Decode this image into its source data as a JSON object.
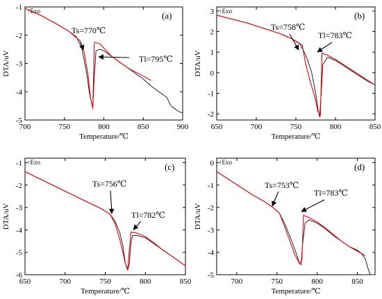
{
  "figure": {
    "panels": [
      {
        "id": "a",
        "label": "(a)",
        "exo": "↑Exo",
        "xlabel": "Temperature/℃",
        "ylabel": "DTA/uV"
      },
      {
        "id": "b",
        "label": "(b)",
        "exo": "↑Exo",
        "xlabel": "Temperature/℃",
        "ylabel": "DTA/uV"
      },
      {
        "id": "c",
        "label": "(c)",
        "exo": "↑Exo",
        "xlabel": "Temperature/℃",
        "ylabel": "DTA/uV"
      },
      {
        "id": "d",
        "label": "(d)",
        "exo": "↑Exo",
        "xlabel": "Temperature/℃",
        "ylabel": "DTA/uV"
      }
    ]
  },
  "chart_data": [
    {
      "type": "line",
      "panel": "(a)",
      "xlabel": "Temperature/℃",
      "ylabel": "DTA/uV",
      "xlim": [
        700,
        900
      ],
      "ylim": [
        -5,
        -1
      ],
      "xticks": [
        700,
        750,
        800,
        850,
        900
      ],
      "yticks": [
        -5,
        -4,
        -3,
        -2,
        -1
      ],
      "series": [
        {
          "color": "#222222",
          "x": [
            700,
            720,
            740,
            755,
            765,
            772,
            778,
            782,
            786,
            788,
            790,
            795,
            800,
            810,
            820,
            830,
            840,
            850,
            860,
            870,
            880,
            885,
            890,
            895,
            900
          ],
          "y": [
            -1.05,
            -1.3,
            -1.6,
            -1.85,
            -2.05,
            -2.45,
            -3.3,
            -4.1,
            -4.55,
            -3.4,
            -2.55,
            -2.5,
            -2.55,
            -2.75,
            -2.95,
            -3.15,
            -3.35,
            -3.55,
            -3.8,
            -4.0,
            -4.2,
            -4.5,
            -4.6,
            -4.7,
            -4.75
          ]
        },
        {
          "color": "#e8000b",
          "x": [
            700,
            720,
            740,
            755,
            770,
            775,
            780,
            783,
            786,
            788,
            795,
            800,
            810,
            820,
            830,
            840,
            850,
            860
          ],
          "y": [
            -1.05,
            -1.3,
            -1.6,
            -1.85,
            -2.2,
            -2.6,
            -3.4,
            -4.2,
            -4.6,
            -2.25,
            -2.3,
            -2.45,
            -2.75,
            -2.95,
            -3.15,
            -3.3,
            -3.45,
            -3.6
          ]
        }
      ],
      "annotations": [
        {
          "text": "Ts=770℃",
          "x": 770,
          "y": -2.2
        },
        {
          "text": "Tl=795℃",
          "x": 795,
          "y": -2.25
        }
      ]
    },
    {
      "type": "line",
      "panel": "(b)",
      "xlabel": "Temperature/℃",
      "ylabel": "DTA/uV",
      "xlim": [
        650,
        850
      ],
      "ylim": [
        -2.3,
        3.2
      ],
      "xticks": [
        650,
        700,
        750,
        800,
        850
      ],
      "yticks": [
        -2,
        -1,
        0,
        1,
        2,
        3
      ],
      "series": [
        {
          "color": "#222222",
          "x": [
            650,
            670,
            690,
            710,
            730,
            745,
            755,
            760,
            765,
            770,
            775,
            778,
            780,
            782,
            784,
            790,
            800,
            810,
            820,
            830,
            840,
            850
          ],
          "y": [
            2.8,
            2.6,
            2.4,
            2.15,
            1.9,
            1.65,
            1.4,
            1.05,
            0.6,
            0.0,
            -1.0,
            -1.8,
            -2.15,
            -1.0,
            0.4,
            0.75,
            0.6,
            0.35,
            0.1,
            -0.15,
            -0.4,
            -0.6
          ]
        },
        {
          "color": "#e8000b",
          "x": [
            650,
            670,
            690,
            710,
            730,
            745,
            758,
            762,
            768,
            774,
            778,
            781,
            783,
            790,
            800,
            810,
            820,
            830,
            840,
            850
          ],
          "y": [
            2.8,
            2.6,
            2.4,
            2.15,
            1.9,
            1.65,
            1.35,
            0.5,
            -0.4,
            -1.2,
            -1.9,
            -2.1,
            0.95,
            0.85,
            0.65,
            0.4,
            0.15,
            -0.1,
            -0.35,
            -0.6
          ]
        }
      ],
      "annotations": [
        {
          "text": "Ts=758℃",
          "x": 758,
          "y": 1.35
        },
        {
          "text": "Tl=783℃",
          "x": 783,
          "y": 0.95
        }
      ]
    },
    {
      "type": "line",
      "panel": "(c)",
      "xlabel": "Temperature/℃",
      "ylabel": "DTA/uV",
      "xlim": [
        650,
        850
      ],
      "ylim": [
        -6,
        -0.8
      ],
      "xticks": [
        650,
        700,
        750,
        800,
        850
      ],
      "yticks": [
        -6,
        -5,
        -4,
        -3,
        -2,
        -1
      ],
      "series": [
        {
          "color": "#222222",
          "x": [
            650,
            670,
            690,
            710,
            730,
            745,
            756,
            762,
            768,
            772,
            775,
            778,
            780,
            782,
            784,
            790,
            800,
            810,
            820,
            830,
            840,
            850
          ],
          "y": [
            -1.4,
            -1.75,
            -2.1,
            -2.45,
            -2.8,
            -3.05,
            -3.3,
            -3.6,
            -4.1,
            -4.7,
            -5.5,
            -5.8,
            -5.5,
            -4.6,
            -4.25,
            -4.25,
            -4.35,
            -4.6,
            -4.85,
            -5.1,
            -5.35,
            -5.6
          ]
        },
        {
          "color": "#e8000b",
          "x": [
            650,
            670,
            690,
            710,
            730,
            745,
            756,
            762,
            768,
            772,
            775,
            778,
            782,
            790,
            800,
            810,
            820,
            830,
            840,
            850
          ],
          "y": [
            -1.4,
            -1.75,
            -2.1,
            -2.45,
            -2.8,
            -3.05,
            -3.3,
            -3.7,
            -4.4,
            -5.0,
            -5.5,
            -5.75,
            -4.1,
            -4.15,
            -4.3,
            -4.55,
            -4.85,
            -5.1,
            -5.35,
            -5.6
          ]
        }
      ],
      "annotations": [
        {
          "text": "Ts=756℃",
          "x": 756,
          "y": -3.3
        },
        {
          "text": "Tl=782℃",
          "x": 782,
          "y": -4.1
        }
      ]
    },
    {
      "type": "line",
      "panel": "(d)",
      "xlabel": "Temperature/℃",
      "ylabel": "DTA/uV",
      "xlim": [
        675,
        872
      ],
      "ylim": [
        -5.0,
        0.2
      ],
      "xticks": [
        700,
        750,
        800,
        850
      ],
      "yticks": [
        -5,
        -4,
        -3,
        -2,
        -1,
        0
      ],
      "series": [
        {
          "color": "#222222",
          "x": [
            675,
            690,
            705,
            720,
            735,
            745,
            753,
            760,
            765,
            770,
            775,
            778,
            780,
            782,
            785,
            790,
            800,
            810,
            820,
            830,
            840,
            850,
            855,
            860,
            863,
            866,
            869,
            871
          ],
          "y": [
            -0.4,
            -0.75,
            -1.1,
            -1.45,
            -1.75,
            -2.0,
            -2.25,
            -2.75,
            -3.2,
            -3.65,
            -4.15,
            -4.5,
            -4.55,
            -3.6,
            -2.7,
            -2.55,
            -2.7,
            -2.95,
            -3.25,
            -3.5,
            -3.75,
            -3.9,
            -4.05,
            -4.3,
            -4.7,
            -5.0,
            -5.0,
            -5.0
          ]
        },
        {
          "color": "#e8000b",
          "x": [
            675,
            690,
            705,
            720,
            735,
            745,
            753,
            760,
            766,
            772,
            778,
            781,
            783,
            790,
            800,
            810,
            820,
            830,
            840,
            850,
            860
          ],
          "y": [
            -0.4,
            -0.75,
            -1.1,
            -1.45,
            -1.75,
            -2.0,
            -2.25,
            -2.9,
            -3.5,
            -4.1,
            -4.5,
            -4.35,
            -2.35,
            -2.45,
            -2.65,
            -2.9,
            -3.2,
            -3.5,
            -3.75,
            -3.95,
            -4.15
          ]
        }
      ],
      "annotations": [
        {
          "text": "Ts=753℃",
          "x": 753,
          "y": -2.25
        },
        {
          "text": "Tl=783℃",
          "x": 783,
          "y": -2.35
        }
      ]
    }
  ]
}
